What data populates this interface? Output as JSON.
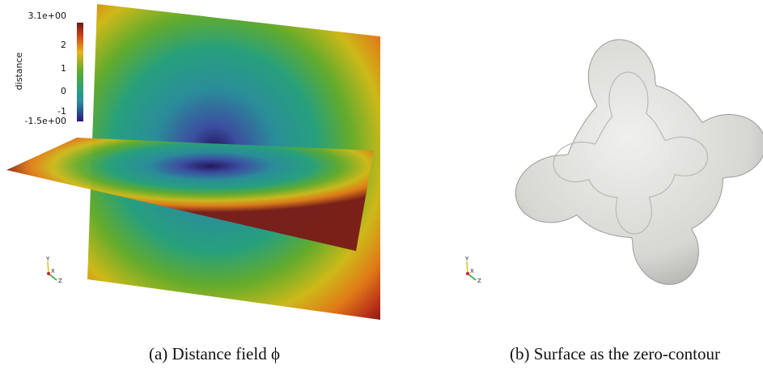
{
  "panels": [
    {
      "colorbar": {
        "title": "distance",
        "ticks": [
          "3.1e+00",
          "2",
          "1",
          "0",
          "-1",
          "-1.5e+00"
        ]
      },
      "axes": [
        "Y",
        "X",
        "Z"
      ],
      "caption": "(a) Distance field ϕ"
    },
    {
      "axes": [
        "Y",
        "X",
        "Z"
      ],
      "caption": "(b) Surface as the zero-contour"
    }
  ]
}
